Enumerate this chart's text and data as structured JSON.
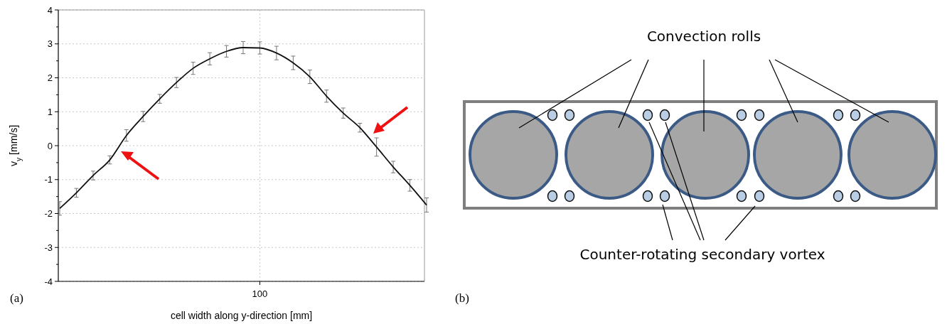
{
  "chart_data": [
    {
      "type": "line",
      "xlabel": "cell width along y-direction [mm]",
      "ylabel": "v$_{y}$ [mm/s]",
      "annotations": [
        "(a)"
      ],
      "categories": [
        null,
        null,
        null,
        null,
        null,
        null,
        null,
        null,
        null,
        null,
        null,
        null,
        "100",
        null,
        null,
        null,
        null,
        null,
        null,
        null,
        null,
        null,
        null
      ],
      "values": [
        -1.85,
        -1.39,
        -0.88,
        -0.42,
        0.3,
        0.86,
        1.38,
        1.86,
        2.28,
        2.56,
        2.78,
        2.89,
        2.88,
        2.73,
        2.44,
        2.03,
        1.46,
        0.96,
        0.53,
        -0.04,
        -0.63,
        -1.17,
        -1.75
      ],
      "errors": [
        0.2,
        0.13,
        0.13,
        0.12,
        0.17,
        0.15,
        0.13,
        0.15,
        0.18,
        0.18,
        0.17,
        0.18,
        0.18,
        0.2,
        0.2,
        0.2,
        0.18,
        0.15,
        0.13,
        0.27,
        0.17,
        0.17,
        0.21
      ],
      "color": "#111111",
      "ylim": [
        -4,
        4
      ],
      "yticks": [
        -4,
        -3,
        -2,
        -1,
        0,
        1,
        2,
        3,
        4
      ],
      "grid": true
    },
    {
      "type": "other",
      "annotations": [
        "(b)",
        "Convection rolls",
        "Counter-rotating secondary vortex"
      ]
    }
  ]
}
